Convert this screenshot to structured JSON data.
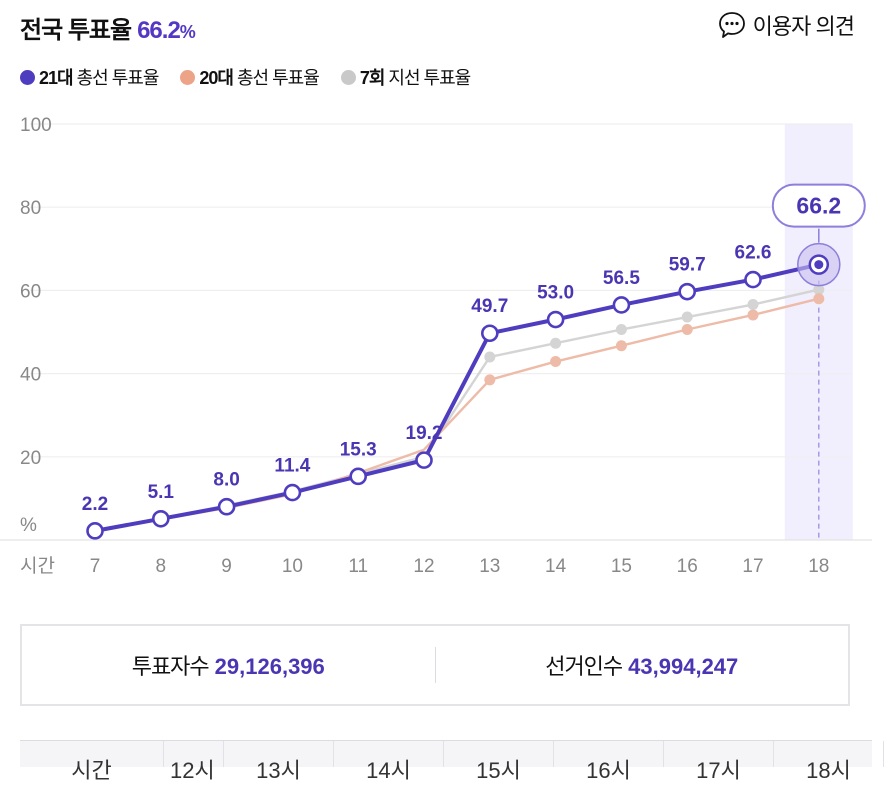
{
  "header": {
    "title_text": "전국 투표율",
    "rate_value": "66.2",
    "rate_unit": "%",
    "feedback_label": "이용자 의견",
    "feedback_icon": "speech-bubble-icon"
  },
  "legend": [
    {
      "bold": "21대",
      "rest": " 총선 투표율",
      "color": "#4f3dc0"
    },
    {
      "bold": "20대",
      "rest": " 총선 투표율",
      "color": "#eda388"
    },
    {
      "bold": "7회",
      "rest": " 지선 투표율",
      "color": "#c9c9c9"
    }
  ],
  "chart_data": {
    "type": "line",
    "x_axis_title": "시간",
    "y_unit_label": "%",
    "x": [
      "7",
      "8",
      "9",
      "10",
      "11",
      "12",
      "13",
      "14",
      "15",
      "16",
      "17",
      "18"
    ],
    "ylim": [
      0,
      100
    ],
    "y_ticks": [
      "20",
      "40",
      "60",
      "80",
      "100"
    ],
    "grid": true,
    "highlight_index": 11,
    "highlight_label": "66.2",
    "series": [
      {
        "name": "21대 총선 투표율",
        "color": "#4f3dc0",
        "values": [
          2.2,
          5.1,
          8.0,
          11.4,
          15.3,
          19.2,
          49.7,
          53.0,
          56.5,
          59.7,
          62.6,
          66.2
        ],
        "labels": [
          "2.2",
          "5.1",
          "8.0",
          "11.4",
          "15.3",
          "19.2",
          "49.7",
          "53.0",
          "56.5",
          "59.7",
          "62.6",
          "66.2"
        ]
      },
      {
        "name": "20대 총선 투표율",
        "color": "#eebba8",
        "values": [
          2.0,
          4.9,
          7.7,
          11.0,
          16.1,
          21.7,
          38.5,
          42.9,
          46.7,
          50.6,
          54.1,
          58.0
        ]
      },
      {
        "name": "7회 지선 투표율",
        "color": "#d4d4d4",
        "values": [
          2.4,
          5.2,
          8.3,
          11.7,
          15.9,
          20.0,
          44.0,
          47.3,
          50.6,
          53.6,
          56.6,
          60.2
        ]
      }
    ]
  },
  "stats": {
    "voters_label": "투표자수",
    "voters_value": "29,126,396",
    "electorate_label": "선거인수",
    "electorate_value": "43,994,247"
  },
  "table_header": [
    "시간",
    "12시",
    "13시",
    "14시",
    "15시",
    "16시",
    "17시",
    "18시"
  ]
}
